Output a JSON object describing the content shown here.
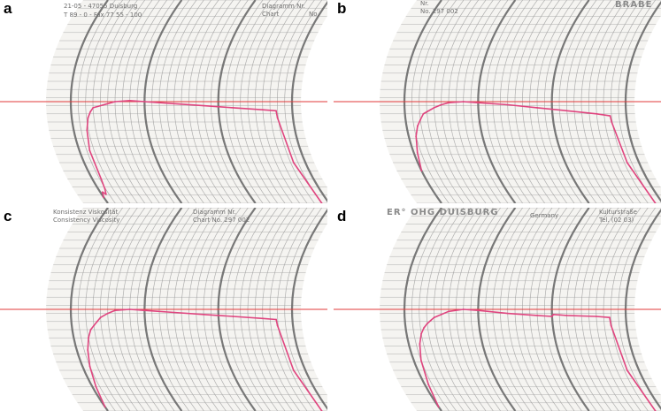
{
  "colors": {
    "paper": "#f5f4f1",
    "grid": "#9b9b9b",
    "grid_heavy": "#6a6a6a",
    "reference_line": "#e23a3a",
    "trace": "#e0457f"
  },
  "panels": [
    {
      "label": "a",
      "header": [
        {
          "text": "21-05 - 47055 Duisburg",
          "pos": "top-left"
        },
        {
          "text": "T 89 - 0 - Fax 77 55 - 100",
          "pos": "top-left-2"
        },
        {
          "text": "Diagramm Nr.",
          "pos": "top-right"
        },
        {
          "text": "Chart",
          "pos": "top-right-2"
        },
        {
          "text": "No.",
          "pos": "top-right-3"
        }
      ],
      "chart_data": {
        "type": "line",
        "title": "",
        "xlabel": "",
        "ylabel": "",
        "xlim": [
          0,
          30
        ],
        "ylim": [
          0,
          1000
        ],
        "reference_line_y": 500,
        "series": [
          {
            "x": [
              0,
              0.3,
              0.6,
              0.9,
              1.2,
              1.4,
              1.8,
              2.2,
              2.6,
              3,
              4,
              5,
              6,
              8,
              10,
              14,
              18,
              22,
              26,
              27.8,
              27.9,
              28.4,
              29
            ],
            "y": [
              30,
              55,
              45,
              70,
              120,
              260,
              360,
              420,
              450,
              470,
              480,
              490,
              500,
              505,
              500,
              490,
              480,
              470,
              460,
              455,
              420,
              200,
              0
            ]
          }
        ]
      }
    },
    {
      "label": "b",
      "header": [
        {
          "text": "Nr.",
          "pos": "top-center-1"
        },
        {
          "text": "No. 297 002",
          "pos": "top-center-2"
        },
        {
          "text": "BRABE",
          "pos": "top-right-big"
        }
      ],
      "chart_data": {
        "type": "line",
        "title": "",
        "xlabel": "",
        "ylabel": "",
        "xlim": [
          0,
          30
        ],
        "ylim": [
          0,
          1000
        ],
        "reference_line_y": 500,
        "series": [
          {
            "x": [
              0,
              0.5,
              1,
              1.5,
              2,
              2.5,
              3,
              4,
              5,
              6,
              8,
              10,
              14,
              18,
              22,
              26,
              27.8,
              27.9,
              28.4,
              29
            ],
            "y": [
              160,
              250,
              330,
              380,
              410,
              440,
              450,
              470,
              485,
              495,
              500,
              495,
              485,
              470,
              455,
              440,
              430,
              400,
              200,
              0
            ]
          }
        ]
      }
    },
    {
      "label": "c",
      "header": [
        {
          "text": "Konsistenz Viskosität",
          "pos": "top-left"
        },
        {
          "text": "Consistency Viscosity",
          "pos": "top-left-2"
        },
        {
          "text": "Diagramm Nr.",
          "pos": "top-center"
        },
        {
          "text": "Chart No. 297 002",
          "pos": "top-center-2"
        }
      ],
      "chart_data": {
        "type": "line",
        "title": "",
        "xlabel": "",
        "ylabel": "",
        "xlim": [
          0,
          30
        ],
        "ylim": [
          0,
          1000
        ],
        "reference_line_y": 500,
        "series": [
          {
            "x": [
              0,
              0.5,
              1,
              1.5,
              2,
              2.5,
              3,
              3.5,
              4,
              5,
              6,
              8,
              10,
              14,
              18,
              22,
              26,
              27.8,
              27.9,
              28.4,
              29
            ],
            "y": [
              20,
              120,
              220,
              300,
              360,
              400,
              420,
              440,
              460,
              480,
              495,
              500,
              495,
              485,
              475,
              465,
              455,
              450,
              420,
              200,
              0
            ]
          }
        ]
      }
    },
    {
      "label": "d",
      "header": [
        {
          "text": "ER° OHG DUISBURG",
          "pos": "top-left-big"
        },
        {
          "text": "Germany",
          "pos": "top-center"
        },
        {
          "text": "Kulturstraße",
          "pos": "top-right"
        },
        {
          "text": "Tel. (02 03)",
          "pos": "top-right-2"
        }
      ],
      "chart_data": {
        "type": "line",
        "title": "",
        "xlabel": "",
        "ylabel": "",
        "xlim": [
          0,
          30
        ],
        "ylim": [
          0,
          1000
        ],
        "reference_line_y": 500,
        "series": [
          {
            "x": [
              0,
              0.5,
              1,
              1.5,
              2,
              2.5,
              3,
              3.5,
              4,
              5,
              6,
              8,
              10,
              14,
              18,
              20,
              20.2,
              22,
              26,
              27.8,
              27.9,
              28.4,
              29
            ],
            "y": [
              20,
              130,
              250,
              330,
              380,
              410,
              430,
              445,
              460,
              475,
              490,
              500,
              495,
              480,
              470,
              465,
              475,
              470,
              465,
              460,
              420,
              200,
              0
            ]
          }
        ]
      }
    }
  ]
}
